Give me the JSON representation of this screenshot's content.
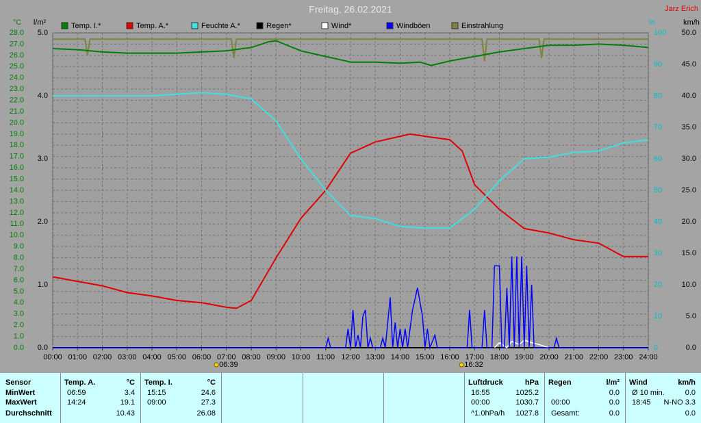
{
  "chart_data": {
    "type": "line",
    "title": "Freitag, 26.02.2021",
    "author": "Jarz Erich",
    "grid": true,
    "xlim": [
      0,
      24
    ],
    "xticks": [
      {
        "value": 0,
        "label": "00:00"
      },
      {
        "value": 1,
        "label": "01:00"
      },
      {
        "value": 2,
        "label": "02:00"
      },
      {
        "value": 3,
        "label": "03:00"
      },
      {
        "value": 4,
        "label": "04:00"
      },
      {
        "value": 5,
        "label": "05:00"
      },
      {
        "value": 6,
        "label": "06:00"
      },
      {
        "value": 7,
        "label": "07:00"
      },
      {
        "value": 8,
        "label": "08:00"
      },
      {
        "value": 9,
        "label": "09:00"
      },
      {
        "value": 10,
        "label": "10:00"
      },
      {
        "value": 11,
        "label": "11:00"
      },
      {
        "value": 12,
        "label": "12:00"
      },
      {
        "value": 13,
        "label": "13:00"
      },
      {
        "value": 14,
        "label": "14:00"
      },
      {
        "value": 15,
        "label": "15:00"
      },
      {
        "value": 16,
        "label": "16:00"
      },
      {
        "value": 17,
        "label": "17:00"
      },
      {
        "value": 18,
        "label": "18:00"
      },
      {
        "value": 19,
        "label": "19:00"
      },
      {
        "value": 20,
        "label": "20:00"
      },
      {
        "value": 21,
        "label": "21:00"
      },
      {
        "value": 22,
        "label": "22:00"
      },
      {
        "value": 23,
        "label": "23:00"
      },
      {
        "value": 24,
        "label": "24:00"
      }
    ],
    "ylabel": "°C",
    "ylim": [
      0,
      28
    ],
    "yticks": [
      {
        "value": 0,
        "label": "0.0"
      },
      {
        "value": 1,
        "label": "1.0"
      },
      {
        "value": 2,
        "label": "2.0"
      },
      {
        "value": 3,
        "label": "3.0"
      },
      {
        "value": 4,
        "label": "4.0"
      },
      {
        "value": 5,
        "label": "5.0"
      },
      {
        "value": 6,
        "label": "6.0"
      },
      {
        "value": 7,
        "label": "7.0"
      },
      {
        "value": 8,
        "label": "8.0"
      },
      {
        "value": 9,
        "label": "9.0"
      },
      {
        "value": 10,
        "label": "10.0"
      },
      {
        "value": 11,
        "label": "11.0"
      },
      {
        "value": 12,
        "label": "12.0"
      },
      {
        "value": 13,
        "label": "13.0"
      },
      {
        "value": 14,
        "label": "14.0"
      },
      {
        "value": 15,
        "label": "15.0"
      },
      {
        "value": 16,
        "label": "16.0"
      },
      {
        "value": 17,
        "label": "17.0"
      },
      {
        "value": 18,
        "label": "18.0"
      },
      {
        "value": 19,
        "label": "19.0"
      },
      {
        "value": 20,
        "label": "20.0"
      },
      {
        "value": 21,
        "label": "21.0"
      },
      {
        "value": 22,
        "label": "22.0"
      },
      {
        "value": 23,
        "label": "23.0"
      },
      {
        "value": 24,
        "label": "24.0"
      },
      {
        "value": 25,
        "label": "25.0"
      },
      {
        "value": 26,
        "label": "26.0"
      },
      {
        "value": 27,
        "label": "27.0"
      },
      {
        "value": 28,
        "label": "28.0"
      }
    ],
    "y2label": "l/m²",
    "y2lim": [
      0,
      5
    ],
    "y2ticks": [
      {
        "value": 0,
        "label": "0.0"
      },
      {
        "value": 1,
        "label": "1.0"
      },
      {
        "value": 2,
        "label": "2.0"
      },
      {
        "value": 3,
        "label": "3.0"
      },
      {
        "value": 4,
        "label": "4.0"
      },
      {
        "value": 5,
        "label": "5.0"
      }
    ],
    "y3label": "%",
    "y3lim": [
      0,
      100
    ],
    "y3ticks": [
      0,
      10,
      20,
      30,
      40,
      50,
      60,
      70,
      80,
      90,
      100
    ],
    "y4label": "km/h",
    "y4lim": [
      0,
      50
    ],
    "y4ticks": [
      {
        "value": 0,
        "label": "0.0"
      },
      {
        "value": 5,
        "label": "5.0"
      },
      {
        "value": 10,
        "label": "10.0"
      },
      {
        "value": 15,
        "label": "15.0"
      },
      {
        "value": 20,
        "label": "20.0"
      },
      {
        "value": 25,
        "label": "25.0"
      },
      {
        "value": 30,
        "label": "30.0"
      },
      {
        "value": 35,
        "label": "35.0"
      },
      {
        "value": 40,
        "label": "40.0"
      },
      {
        "value": 45,
        "label": "45.0"
      },
      {
        "value": 50,
        "label": "50.0"
      }
    ],
    "annotations": [
      {
        "x": 6.65,
        "text": "06:39"
      },
      {
        "x": 16.53,
        "text": "16:32"
      }
    ],
    "series": [
      {
        "name": "Temp. I.*",
        "color": "#008000",
        "axis": "y",
        "x": [
          0,
          1,
          2,
          3,
          4,
          5,
          6,
          7,
          8,
          8.7,
          9,
          10,
          11,
          12,
          13,
          14,
          14.8,
          15.25,
          16,
          17,
          18,
          19,
          20,
          21,
          22,
          23,
          24
        ],
        "values": [
          26.6,
          26.5,
          26.3,
          26.2,
          26.2,
          26.2,
          26.3,
          26.4,
          26.7,
          27.2,
          27.3,
          26.4,
          25.9,
          25.4,
          25.4,
          25.3,
          25.4,
          25.1,
          25.5,
          25.9,
          26.3,
          26.6,
          26.9,
          26.9,
          27.0,
          26.9,
          26.7
        ]
      },
      {
        "name": "Temp. A.*",
        "color": "#e00000",
        "axis": "y",
        "x": [
          0,
          1,
          2,
          3,
          4,
          5,
          6,
          7,
          7.4,
          8,
          9,
          10,
          11,
          12,
          13,
          14,
          14.4,
          15,
          16,
          16.5,
          17,
          18,
          19,
          20,
          21,
          22,
          23,
          24
        ],
        "values": [
          6.3,
          5.9,
          5.5,
          4.9,
          4.6,
          4.2,
          4.0,
          3.6,
          3.5,
          4.2,
          8.0,
          11.5,
          14.0,
          17.3,
          18.3,
          18.8,
          19.0,
          18.8,
          18.5,
          17.5,
          14.5,
          12.3,
          10.6,
          10.2,
          9.6,
          9.3,
          8.1,
          8.1
        ]
      },
      {
        "name": "Feuchte A.*",
        "color": "#40e0e0",
        "axis": "y3",
        "x": [
          0,
          2,
          4,
          6,
          7,
          8,
          9,
          10,
          11,
          12,
          13,
          14,
          15,
          16,
          17,
          18,
          19,
          20,
          21,
          22,
          23,
          24
        ],
        "values": [
          80,
          80,
          80,
          81,
          80.5,
          79,
          72,
          60,
          50,
          42,
          41,
          38.5,
          38,
          38,
          44,
          53,
          60,
          60.5,
          62,
          62.5,
          65,
          66
        ]
      },
      {
        "name": "Regen*",
        "color": "#000000",
        "axis": "y2",
        "x": [
          0,
          24
        ],
        "values": [
          0,
          0
        ]
      },
      {
        "name": "Wind*",
        "color": "#ffffff",
        "axis": "y4",
        "x": [
          17.8,
          18,
          18.3,
          18.5,
          18.8,
          19,
          19.3,
          19.6,
          20
        ],
        "values": [
          0,
          0.8,
          0,
          1,
          0.5,
          1.2,
          0.8,
          0.5,
          0
        ]
      },
      {
        "name": "Windböen",
        "color": "#0000ff",
        "axis": "y4",
        "x": [
          0,
          11.0,
          11.1,
          11.2,
          11.8,
          11.9,
          12.0,
          12.1,
          12.2,
          12.3,
          12.4,
          12.5,
          12.6,
          12.7,
          12.8,
          12.9,
          13.2,
          13.3,
          13.4,
          13.5,
          13.6,
          13.7,
          13.8,
          13.9,
          14.0,
          14.1,
          14.2,
          14.3,
          14.5,
          14.7,
          14.9,
          15.0,
          15.1,
          15.2,
          15.4,
          15.5,
          16.7,
          16.8,
          16.9,
          17.3,
          17.4,
          17.5,
          17.7,
          17.8,
          18.0,
          18.1,
          18.2,
          18.3,
          18.4,
          18.5,
          18.6,
          18.7,
          18.8,
          18.9,
          19.0,
          19.1,
          19.2,
          19.3,
          19.4,
          20.2,
          20.3,
          20.4,
          24
        ],
        "values": [
          0,
          0,
          1.5,
          0,
          0,
          3,
          0,
          6,
          0,
          2,
          0,
          5,
          6,
          0,
          1.5,
          0,
          0,
          1.5,
          0,
          4,
          8,
          0,
          4,
          0,
          3,
          0,
          3,
          0,
          6,
          9.5,
          5,
          0,
          3,
          0,
          2,
          0,
          0,
          6,
          0,
          0,
          6,
          0,
          0,
          13,
          13,
          0,
          0,
          9.5,
          0,
          14.5,
          0,
          14.5,
          0,
          14.5,
          0,
          13,
          0,
          10,
          0,
          0,
          1.5,
          0,
          0
        ]
      },
      {
        "name": "Einstrahlung",
        "color": "#808040",
        "axis": "y3",
        "x": [
          0,
          1.3,
          1.4,
          1.5,
          3,
          7,
          7.2,
          7.3,
          7.4,
          12,
          17,
          17.3,
          17.4,
          17.5,
          18.5,
          19.6,
          19.7,
          19.8,
          24
        ],
        "values": [
          98,
          98,
          93,
          98,
          98,
          98,
          98,
          92,
          98,
          98,
          98,
          98,
          91,
          98,
          98,
          98,
          92,
          98,
          98
        ]
      }
    ]
  },
  "table": {
    "sections": [
      {
        "name": "Temp. A.",
        "unit": "°C",
        "rows": [
          {
            "time": "06:59",
            "value": "3.4"
          },
          {
            "time": "14:24",
            "value": "19.1"
          },
          {
            "value": "10.43"
          }
        ]
      },
      {
        "name": "Temp. I.",
        "unit": "°C",
        "rows": [
          {
            "time": "15:15",
            "value": "24.6"
          },
          {
            "time": "09:00",
            "value": "27.3"
          },
          {
            "value": "26.08"
          }
        ]
      },
      {
        "name": "Luftdruck",
        "unit": "hPa",
        "rows": [
          {
            "time": "16:55",
            "value": "1025.2"
          },
          {
            "time": "00:00",
            "value": "1030.7"
          },
          {
            "time": "^1.0hPa/h",
            "value": "1027.8"
          }
        ]
      },
      {
        "name": "Regen",
        "unit": "l/m²",
        "rows": [
          {
            "value": "0.0"
          },
          {
            "time": "00:00",
            "value": "0.0"
          },
          {
            "time": "Gesamt:",
            "value": "0.0"
          }
        ]
      },
      {
        "name": "Wind",
        "unit": "km/h",
        "rows": [
          {
            "time": "Ø 10 min.",
            "value": "0.0"
          },
          {
            "time": "18:45",
            "value": "N-NO 3.3"
          },
          {
            "value": "0.0"
          }
        ]
      }
    ],
    "row_names": [
      "Sensor",
      "MinWert",
      "MaxWert",
      "Durchschnitt"
    ]
  }
}
